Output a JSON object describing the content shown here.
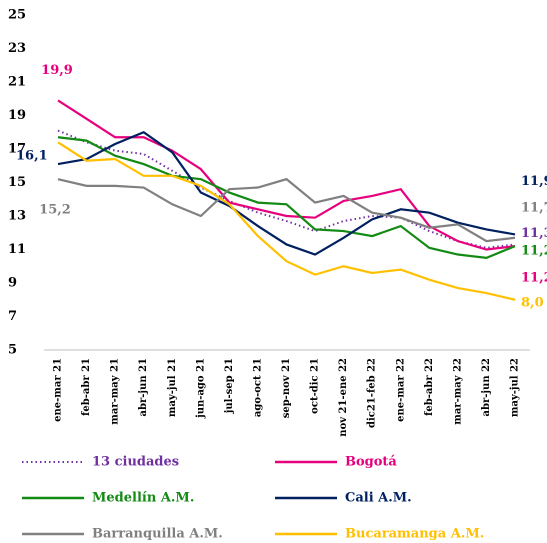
{
  "chart_data": {
    "type": "line",
    "categories": [
      "ene-mar 21",
      "feb-abr 21",
      "mar-may 21",
      "abr-jun 21",
      "may-jul 21",
      "jun-ago 21",
      "jul-sep 21",
      "ago-oct 21",
      "sep-nov 21",
      "oct-dic 21",
      "nov 21-ene 22",
      "dic21-feb 22",
      "ene-mar 22",
      "feb-abr 22",
      "mar-may 22",
      "abr-jun 22",
      "may-jul 22"
    ],
    "ylim": [
      5,
      25
    ],
    "yticks": [
      5,
      7,
      9,
      11,
      13,
      15,
      17,
      19,
      21,
      23,
      25
    ],
    "grid": false,
    "legend": "bottom",
    "series": [
      {
        "name": "13 ciudades",
        "color": "#7030a0",
        "dash": "dotted",
        "values": [
          18.1,
          17.4,
          16.9,
          16.7,
          15.7,
          14.7,
          13.9,
          13.2,
          12.7,
          12.1,
          12.7,
          13.0,
          12.9,
          12.1,
          11.5,
          11.1,
          11.3
        ],
        "value_labels": [
          null,
          null,
          null,
          null,
          null,
          null,
          null,
          null,
          null,
          null,
          null,
          null,
          null,
          null,
          null,
          null,
          "11,3"
        ]
      },
      {
        "name": "Bogotá",
        "color": "#e6007e",
        "values": [
          19.9,
          18.8,
          17.7,
          17.7,
          16.9,
          15.8,
          13.8,
          13.4,
          13.0,
          12.9,
          13.9,
          14.2,
          14.6,
          12.4,
          11.5,
          11.0,
          11.2
        ],
        "value_labels": [
          "19,9",
          null,
          null,
          null,
          null,
          null,
          null,
          null,
          null,
          null,
          null,
          null,
          null,
          null,
          null,
          null,
          "11,2"
        ]
      },
      {
        "name": "Medellín A.M.",
        "color": "#138a13",
        "values": [
          17.7,
          17.5,
          16.6,
          16.1,
          15.4,
          15.2,
          14.4,
          13.8,
          13.7,
          12.2,
          12.1,
          11.8,
          12.4,
          11.1,
          10.7,
          10.5,
          11.2
        ],
        "value_labels": [
          null,
          null,
          null,
          null,
          null,
          null,
          null,
          null,
          null,
          null,
          null,
          null,
          null,
          null,
          null,
          null,
          "11,2"
        ]
      },
      {
        "name": "Cali A.M.",
        "color": "#002060",
        "values": [
          16.1,
          16.4,
          17.3,
          18.0,
          16.8,
          14.4,
          13.6,
          12.4,
          11.3,
          10.7,
          11.7,
          12.8,
          13.4,
          13.2,
          12.6,
          12.2,
          11.9
        ],
        "value_labels": [
          "16,1",
          null,
          null,
          null,
          null,
          null,
          null,
          null,
          null,
          null,
          null,
          null,
          null,
          null,
          null,
          null,
          "11,9"
        ]
      },
      {
        "name": "Barranquilla A.M.",
        "color": "#808080",
        "values": [
          15.2,
          14.8,
          14.8,
          14.7,
          13.7,
          13.0,
          14.6,
          14.7,
          15.2,
          13.8,
          14.2,
          13.2,
          12.9,
          12.3,
          12.5,
          11.5,
          11.7
        ],
        "value_labels": [
          "15,2",
          null,
          null,
          null,
          null,
          null,
          null,
          null,
          null,
          null,
          null,
          null,
          null,
          null,
          null,
          null,
          "11,7"
        ]
      },
      {
        "name": "Bucaramanga A.M.",
        "color": "#ffc000",
        "values": [
          17.4,
          16.3,
          16.4,
          15.4,
          15.4,
          14.8,
          13.7,
          11.8,
          10.3,
          9.5,
          10.0,
          9.6,
          9.8,
          9.2,
          8.7,
          8.4,
          8.0
        ],
        "value_labels": [
          null,
          null,
          null,
          null,
          null,
          null,
          null,
          null,
          null,
          null,
          null,
          null,
          null,
          null,
          null,
          null,
          "8,0"
        ]
      }
    ]
  }
}
